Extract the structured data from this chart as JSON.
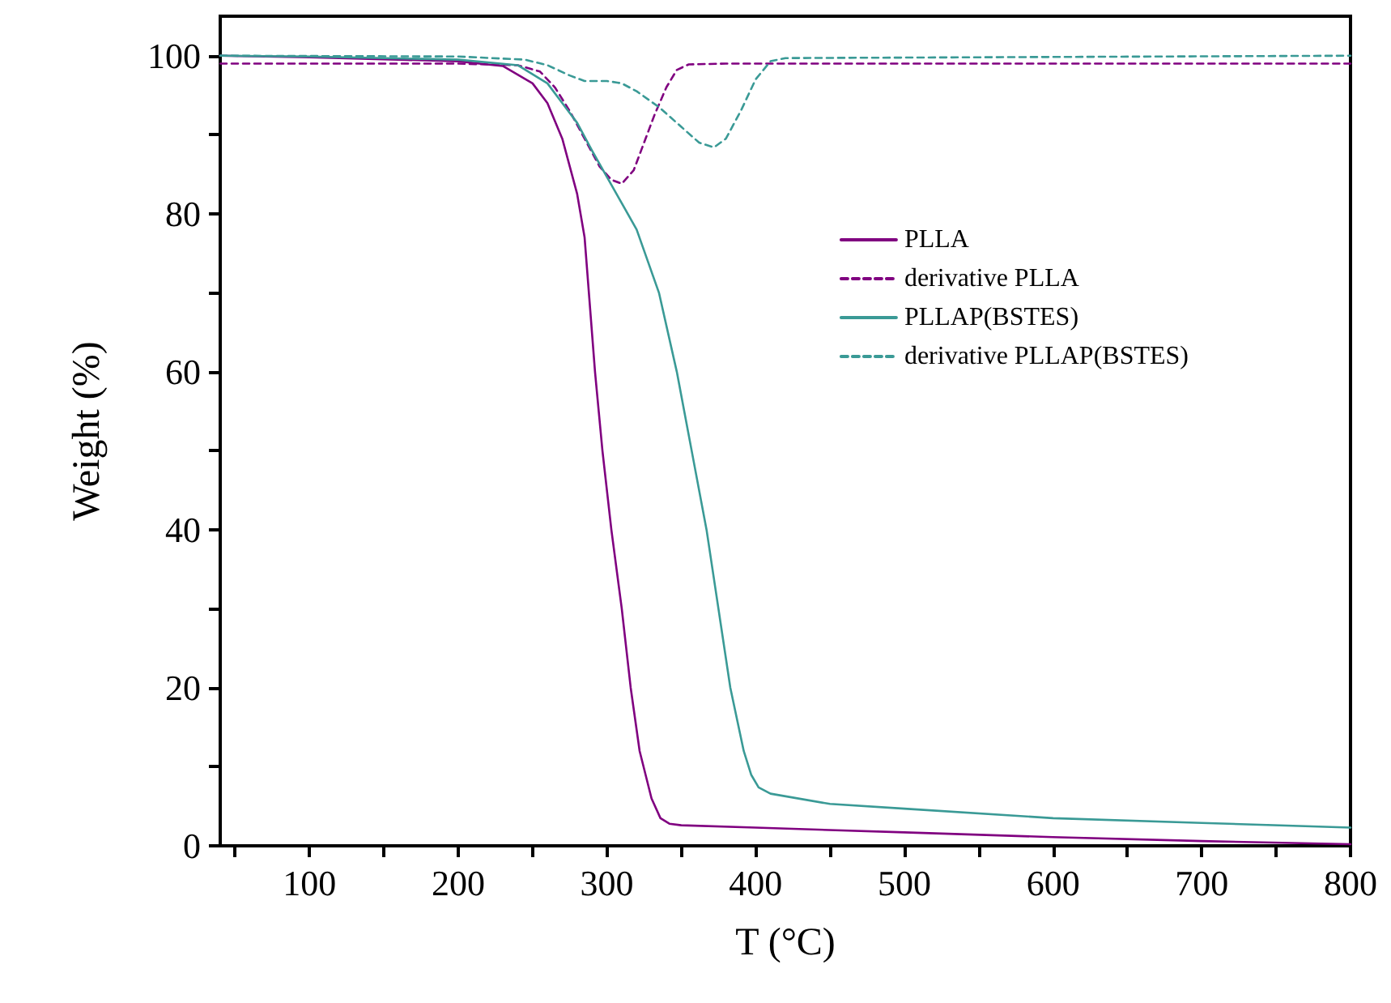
{
  "chart_data": {
    "type": "line",
    "xlabel": "T (°C)",
    "ylabel": "Weight (%)",
    "xlim": [
      40,
      800
    ],
    "ylim": [
      0,
      105
    ],
    "xticks": [
      {
        "value": 50,
        "label": null
      },
      100,
      {
        "value": 150,
        "label": null
      },
      200,
      {
        "value": 250,
        "label": null
      },
      300,
      {
        "value": 350,
        "label": null
      },
      400,
      {
        "value": 450,
        "label": null
      },
      500,
      {
        "value": 550,
        "label": null
      },
      600,
      {
        "value": 650,
        "label": null
      },
      700,
      {
        "value": 750,
        "label": null
      },
      800
    ],
    "yticks": [
      0,
      {
        "value": 10,
        "label": null
      },
      20,
      {
        "value": 30,
        "label": null
      },
      40,
      {
        "value": 50,
        "label": null
      },
      60,
      {
        "value": 70,
        "label": null
      },
      80,
      {
        "value": 90,
        "label": null
      },
      100
    ],
    "legend": "top right",
    "marker": "none",
    "series": [
      {
        "name": "PLLA",
        "color": "#800080",
        "line_style": "solid",
        "x": [
          40,
          100,
          200,
          230,
          250,
          260,
          270,
          280,
          285,
          292,
          297,
          303,
          310,
          316,
          322,
          330,
          336,
          342,
          350,
          400,
          500,
          600,
          700,
          800
        ],
        "values": [
          100,
          99.8,
          99.3,
          98.7,
          96.5,
          94,
          89.5,
          82.5,
          77,
          60,
          50,
          40,
          30,
          20,
          12,
          6,
          3.5,
          2.8,
          2.6,
          2.3,
          1.7,
          1.1,
          0.6,
          0.2
        ]
      },
      {
        "name": "derivative PLLA",
        "color": "#800080",
        "line_style": "dashed",
        "x": [
          40,
          200,
          240,
          255,
          265,
          275,
          285,
          295,
          303,
          310,
          318,
          325,
          332,
          340,
          347,
          355,
          380,
          800
        ],
        "values": [
          99,
          99,
          98.8,
          98,
          96,
          93,
          89.5,
          86,
          84.3,
          83.8,
          85.5,
          89,
          92.5,
          96,
          98.2,
          98.9,
          99,
          99
        ]
      },
      {
        "name": "PLLAP(BSTES)",
        "color": "#3a9a96",
        "line_style": "solid",
        "x": [
          40,
          100,
          200,
          240,
          260,
          270,
          280,
          290,
          302,
          320,
          335,
          347,
          357,
          367,
          375,
          383,
          392,
          397,
          402,
          410,
          450,
          500,
          600,
          700,
          800
        ],
        "values": [
          100,
          99.9,
          99.5,
          98.8,
          96.5,
          94,
          91.5,
          88,
          84,
          78,
          70,
          60,
          50,
          40,
          30,
          20,
          12,
          9,
          7.4,
          6.6,
          5.3,
          4.7,
          3.5,
          2.9,
          2.3
        ]
      },
      {
        "name": "derivative PLLAP(BSTES)",
        "color": "#3a9a96",
        "line_style": "dashed",
        "x": [
          40,
          200,
          245,
          260,
          275,
          285,
          300,
          310,
          320,
          335,
          350,
          362,
          372,
          380,
          390,
          400,
          410,
          420,
          800
        ],
        "values": [
          100,
          99.9,
          99.5,
          98.8,
          97.5,
          96.8,
          96.8,
          96.5,
          95.5,
          93.5,
          91,
          89,
          88.4,
          89.5,
          93,
          97,
          99.3,
          99.7,
          100
        ]
      }
    ]
  }
}
